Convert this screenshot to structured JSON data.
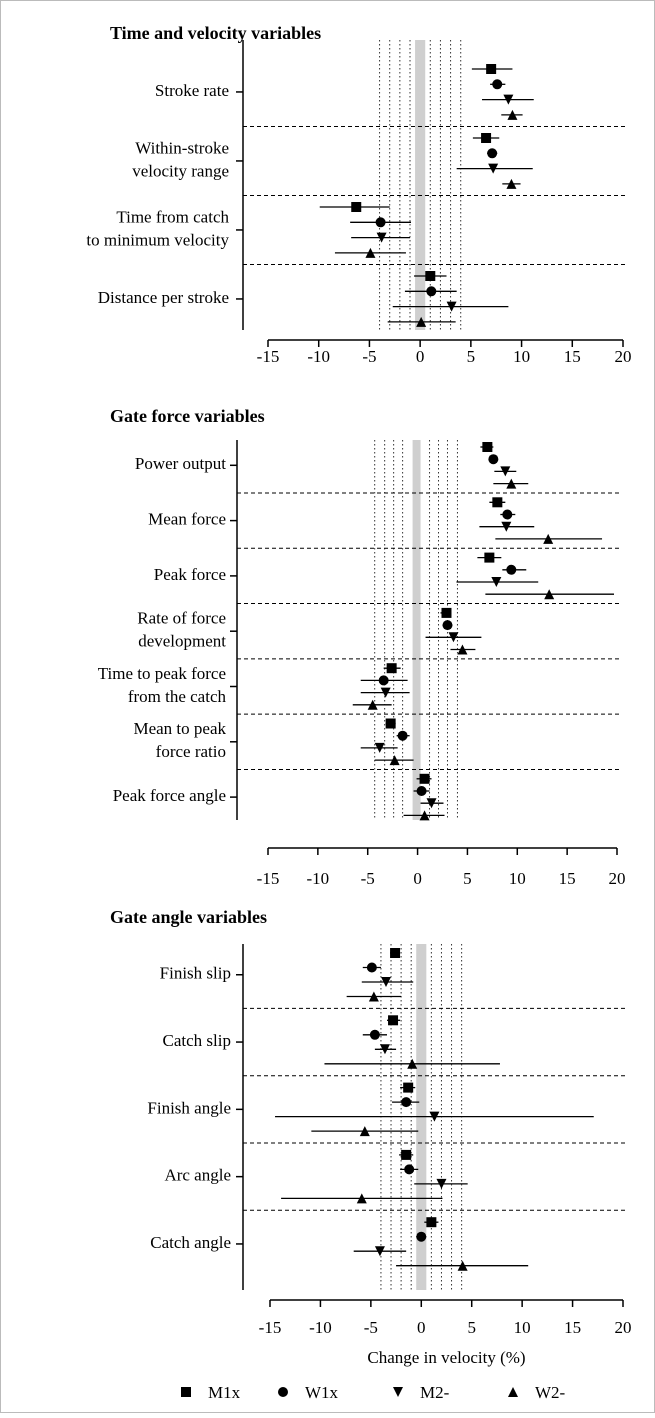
{
  "chart_data": [
    {
      "type": "forest",
      "title": "Time and velocity variables",
      "categories": [
        [
          "Stroke rate"
        ],
        [
          "Within-stroke",
          "velocity range"
        ],
        [
          "Time from catch",
          "to minimum velocity"
        ],
        [
          "Distance per stroke"
        ]
      ],
      "series": [
        {
          "marker": "square",
          "color": "#000",
          "values": [
            7.0,
            6.5,
            -6.3,
            1.0
          ],
          "lower": [
            5.1,
            5.2,
            -9.9,
            -0.6
          ],
          "upper": [
            9.1,
            7.8,
            -3.0,
            2.6
          ]
        },
        {
          "marker": "circle",
          "color": "#000",
          "values": [
            7.6,
            7.1,
            -3.9,
            1.1
          ],
          "lower": [
            6.9,
            6.6,
            -6.9,
            -1.5
          ],
          "upper": [
            8.4,
            7.6,
            -0.9,
            3.6
          ]
        },
        {
          "marker": "triangle-down",
          "color": "#000",
          "values": [
            8.7,
            7.2,
            -3.8,
            3.1
          ],
          "lower": [
            6.1,
            3.6,
            -6.8,
            -2.7
          ],
          "upper": [
            11.2,
            11.1,
            -1.0,
            8.7
          ]
        },
        {
          "marker": "triangle-up",
          "color": "#000",
          "values": [
            9.1,
            9.0,
            -4.9,
            0.1
          ],
          "lower": [
            8.0,
            8.1,
            -8.4,
            -3.2
          ],
          "upper": [
            10.1,
            9.9,
            -1.4,
            3.5
          ]
        }
      ],
      "xlim": [
        -15,
        20
      ],
      "xticks": [
        -15,
        -10,
        -5,
        0,
        5,
        10,
        15,
        20
      ],
      "reference_lines": [
        -4,
        -3,
        -2,
        -1,
        1,
        2,
        3,
        4
      ],
      "shaded": [
        -0.5,
        0.5
      ]
    },
    {
      "type": "forest",
      "title": "Gate force variables",
      "categories": [
        [
          "Power output"
        ],
        [
          "Mean force"
        ],
        [
          "Peak force"
        ],
        [
          "Rate of force",
          "development"
        ],
        [
          "Time to peak force",
          "from the catch"
        ],
        [
          "Mean to peak",
          "force ratio"
        ],
        [
          "Peak force angle"
        ]
      ],
      "series": [
        {
          "marker": "square",
          "color": "#000",
          "values": [
            7.0,
            8.0,
            7.2,
            2.9,
            -2.6,
            -2.7,
            0.7
          ],
          "lower": [
            6.3,
            7.2,
            6.0,
            2.3,
            -3.4,
            -3.2,
            -0.1
          ],
          "upper": [
            7.6,
            8.8,
            8.4,
            3.4,
            -1.7,
            -2.2,
            1.4
          ]
        },
        {
          "marker": "circle",
          "color": "#000",
          "values": [
            7.6,
            9.0,
            9.4,
            3.0,
            -3.4,
            -1.5,
            0.4
          ],
          "lower": [
            7.2,
            8.3,
            8.5,
            2.5,
            -5.7,
            -2.1,
            -0.4
          ],
          "upper": [
            8.0,
            9.8,
            10.9,
            3.5,
            -1.0,
            -0.8,
            1.2
          ]
        },
        {
          "marker": "triangle-down",
          "color": "#000",
          "values": [
            8.8,
            8.9,
            7.9,
            3.6,
            -3.2,
            -3.8,
            1.4
          ],
          "lower": [
            7.7,
            6.2,
            3.9,
            0.8,
            -5.7,
            -5.7,
            0.3
          ],
          "upper": [
            9.9,
            11.7,
            12.1,
            6.4,
            -0.8,
            -2.0,
            2.6
          ]
        },
        {
          "marker": "triangle-up",
          "color": "#000",
          "values": [
            9.4,
            13.1,
            13.2,
            4.5,
            -4.5,
            -2.3,
            0.7
          ],
          "lower": [
            7.6,
            7.8,
            6.8,
            3.3,
            -6.5,
            -4.3,
            -1.4
          ],
          "upper": [
            11.1,
            18.5,
            19.7,
            5.8,
            -2.6,
            -0.4,
            2.7
          ]
        }
      ],
      "xlim": [
        -15,
        20
      ],
      "xticks": [
        -15,
        -10,
        -5,
        0,
        5,
        10,
        15,
        20
      ],
      "reference_lines": [
        -4.3,
        -3.3,
        -2.4,
        -1.5,
        1.2,
        2.1,
        3.0,
        4.0
      ],
      "shaded": [
        -0.5,
        0.3
      ]
    },
    {
      "type": "forest",
      "title": "Gate angle variables",
      "xlabel": "Change in velocity (%)",
      "categories": [
        [
          "Finish slip"
        ],
        [
          "Catch slip"
        ],
        [
          "Finish angle"
        ],
        [
          "Arc angle"
        ],
        [
          "Catch angle"
        ]
      ],
      "series": [
        {
          "name": "M1x",
          "marker": "square",
          "color": "#000",
          "values": [
            -2.6,
            -2.8,
            -1.3,
            -1.5,
            1.0
          ],
          "lower": [
            -3.1,
            -3.4,
            -2.1,
            -2.2,
            0.3
          ],
          "upper": [
            -2.1,
            -2.1,
            -0.6,
            -0.8,
            1.7
          ]
        },
        {
          "name": "W1x",
          "marker": "circle",
          "color": "#000",
          "values": [
            -4.9,
            -4.6,
            -1.5,
            -1.2,
            0.0
          ],
          "lower": [
            -5.8,
            -5.8,
            -2.9,
            -2.1,
            -0.5
          ],
          "upper": [
            -4.0,
            -3.4,
            -0.2,
            -0.3,
            0.5
          ]
        },
        {
          "name": "M2-",
          "marker": "triangle-down",
          "color": "#000",
          "values": [
            -3.5,
            -3.6,
            1.3,
            2.0,
            -4.1
          ],
          "lower": [
            -5.9,
            -4.6,
            -14.5,
            -0.7,
            -6.7
          ],
          "upper": [
            -0.8,
            -2.5,
            17.1,
            4.6,
            -1.5
          ]
        },
        {
          "name": "W2-",
          "marker": "triangle-up",
          "color": "#000",
          "values": [
            -4.7,
            -0.9,
            -5.6,
            -5.9,
            4.1
          ],
          "lower": [
            -7.4,
            -9.6,
            -10.9,
            -13.9,
            -2.5
          ],
          "upper": [
            -2.0,
            7.8,
            -0.3,
            2.1,
            10.6
          ]
        }
      ],
      "xlim": [
        -15,
        20
      ],
      "xticks": [
        -15,
        -10,
        -5,
        0,
        5,
        10,
        15,
        20
      ],
      "reference_lines": [
        -4,
        -3,
        -2,
        -1,
        1,
        2,
        3,
        4
      ],
      "shaded": [
        -0.5,
        0.5
      ]
    }
  ]
}
